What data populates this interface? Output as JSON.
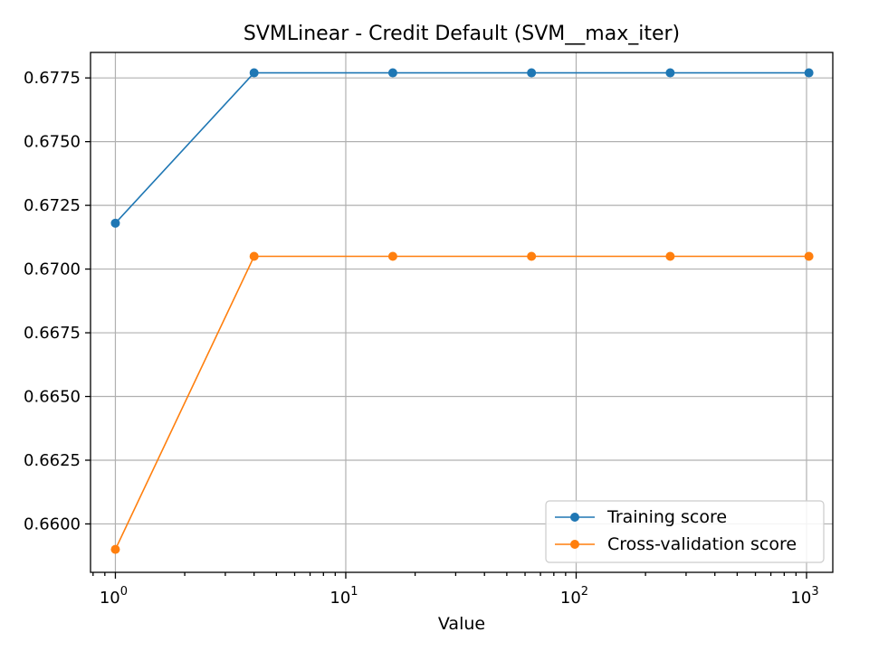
{
  "chart_data": {
    "type": "line",
    "title": "SVMLinear - Credit Default (SVM__max_iter)",
    "xlabel": "Value",
    "ylabel": "",
    "x_scale": "log",
    "xlim": [
      0.78,
      1300
    ],
    "ylim": [
      0.6581,
      0.6785
    ],
    "x_ticks": [
      {
        "value": 1,
        "base": "10",
        "exp": "0"
      },
      {
        "value": 10,
        "base": "10",
        "exp": "1"
      },
      {
        "value": 100,
        "base": "10",
        "exp": "2"
      },
      {
        "value": 1000,
        "base": "10",
        "exp": "3"
      }
    ],
    "y_ticks": [
      "0.6600",
      "0.6625",
      "0.6650",
      "0.6675",
      "0.6700",
      "0.6725",
      "0.6750",
      "0.6775"
    ],
    "grid": true,
    "legend_position": "lower-right",
    "x": [
      1,
      4,
      16,
      64,
      256,
      1024
    ],
    "series": [
      {
        "name": "Training score",
        "color": "#1f77b4",
        "values": [
          0.6718,
          0.6777,
          0.6777,
          0.6777,
          0.6777,
          0.6777
        ]
      },
      {
        "name": "Cross-validation score",
        "color": "#ff7f0e",
        "values": [
          0.659,
          0.6705,
          0.6705,
          0.6705,
          0.6705,
          0.6705
        ]
      }
    ]
  }
}
